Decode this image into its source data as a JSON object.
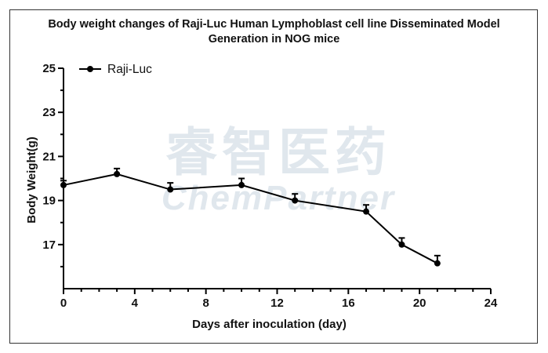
{
  "chart_data": {
    "type": "line",
    "title": "Body weight changes of Raji-Luc Human Lymphoblast cell line Disseminated Model Generation in NOG mice",
    "title_lines": [
      "Body weight changes of Raji-Luc Human Lymphoblast cell line Disseminated Model",
      "Generation in NOG mice"
    ],
    "xlabel": "Days after inoculation (day)",
    "ylabel": "Body Weight(g)",
    "xlim": [
      0,
      24
    ],
    "ylim": [
      15,
      25
    ],
    "xticks": [
      0,
      4,
      8,
      12,
      16,
      20,
      24
    ],
    "yticks": [
      17,
      19,
      21,
      23,
      25
    ],
    "grid": false,
    "legend_position": "top-left",
    "series": [
      {
        "name": "Raji-Luc",
        "color": "#000000",
        "x": [
          0,
          3,
          6,
          10,
          13,
          17,
          19,
          21
        ],
        "y": [
          19.7,
          20.2,
          19.5,
          19.7,
          19.0,
          18.5,
          17.0,
          16.15
        ],
        "error": [
          0.2,
          0.25,
          0.3,
          0.3,
          0.3,
          0.3,
          0.3,
          0.35
        ]
      }
    ]
  },
  "watermark": {
    "cn": "睿智医药",
    "en": "ChemPartner"
  }
}
